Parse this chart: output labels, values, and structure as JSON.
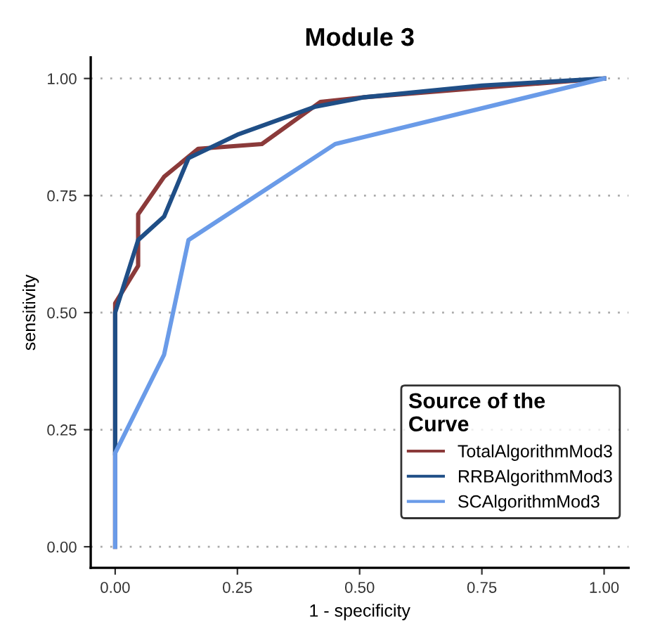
{
  "chart_data": {
    "type": "line",
    "title": "Module 3",
    "xlabel": "1 - specificity",
    "ylabel": "sensitivity",
    "legend_title": "Source of the\nCurve",
    "legend": "bottom right",
    "grid": "y",
    "line_style": "solid",
    "marker": "none",
    "xlim": [
      -0.05,
      1.05
    ],
    "ylim": [
      -0.045,
      1.045
    ],
    "xticks": [
      {
        "value": 0,
        "label": "0.00"
      },
      {
        "value": 0.25,
        "label": "0.25"
      },
      {
        "value": 0.5,
        "label": "0.50"
      },
      {
        "value": 0.75,
        "label": "0.75"
      },
      {
        "value": 1,
        "label": "1.00"
      }
    ],
    "yticks": [
      {
        "value": 0,
        "label": "0.00"
      },
      {
        "value": 0.25,
        "label": "0.25"
      },
      {
        "value": 0.5,
        "label": "0.50"
      },
      {
        "value": 0.75,
        "label": "0.75"
      },
      {
        "value": 1,
        "label": "1.00"
      }
    ],
    "series": [
      {
        "name": "TotalAlgorithmMod3",
        "color": "#8b3a3a",
        "x": [
          0,
          0,
          0.047,
          0.047,
          0.1,
          0.17,
          0.3,
          0.42,
          0.51,
          0.75,
          1
        ],
        "values": [
          0,
          0.52,
          0.6,
          0.71,
          0.79,
          0.85,
          0.86,
          0.95,
          0.96,
          0.98,
          1
        ]
      },
      {
        "name": "RRBAlgorithmMod3",
        "color": "#1f4e86",
        "x": [
          0,
          0,
          0.047,
          0.1,
          0.15,
          0.25,
          0.41,
          0.51,
          0.75,
          1
        ],
        "values": [
          0.2,
          0.5,
          0.655,
          0.705,
          0.83,
          0.88,
          0.94,
          0.96,
          0.985,
          1
        ]
      },
      {
        "name": "SCAlgorithmMod3",
        "color": "#6a9be8",
        "x": [
          0,
          0,
          0.1,
          0.15,
          0.45,
          1
        ],
        "values": [
          0,
          0.2,
          0.41,
          0.655,
          0.86,
          1
        ]
      }
    ]
  }
}
